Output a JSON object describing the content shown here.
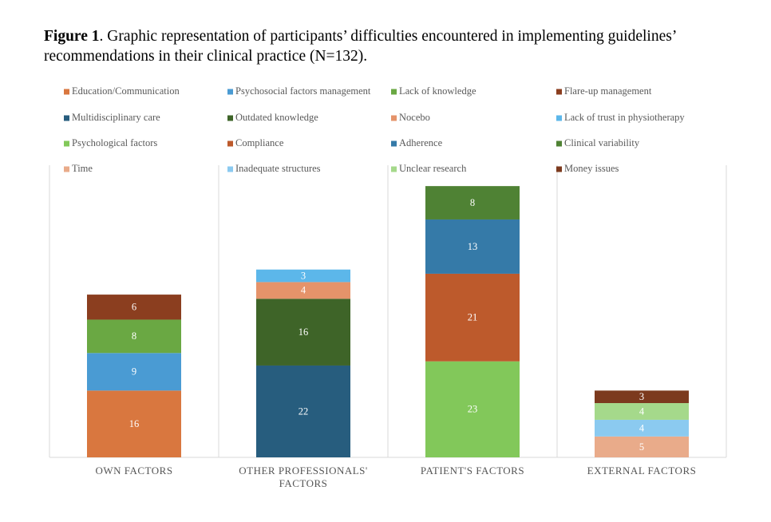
{
  "figure_label": "Figure 1",
  "chart_data": {
    "type": "bar",
    "stacked": true,
    "title": ". Graphic representation of participants’ difficulties encountered in implementing guidelines’ recommendations in their clinical practice (N=132).",
    "categories": [
      "OWN FACTORS",
      "OTHER PROFESSIONALS' FACTORS",
      "PATIENT'S FACTORS",
      "EXTERNAL FACTORS"
    ],
    "ylim": [
      0,
      70
    ],
    "series": [
      {
        "name": "Education/Communication",
        "color": "#d9773f",
        "values": [
          16,
          null,
          null,
          null
        ]
      },
      {
        "name": "Psychosocial factors management",
        "color": "#4a9bd3",
        "values": [
          9,
          null,
          null,
          null
        ]
      },
      {
        "name": "Lack of knowledge",
        "color": "#6aa843",
        "values": [
          8,
          null,
          null,
          null
        ]
      },
      {
        "name": "Flare-up management",
        "color": "#8b3e1f",
        "values": [
          6,
          null,
          null,
          null
        ]
      },
      {
        "name": "Multidisciplinary care",
        "color": "#275d7e",
        "values": [
          null,
          22,
          null,
          null
        ]
      },
      {
        "name": "Outdated knowledge",
        "color": "#3e6428",
        "values": [
          null,
          16,
          null,
          null
        ]
      },
      {
        "name": "Nocebo",
        "color": "#e5936a",
        "values": [
          null,
          4,
          null,
          null
        ]
      },
      {
        "name": "Lack of trust in physiotherapy",
        "color": "#5cb7ea",
        "values": [
          null,
          3,
          null,
          null
        ]
      },
      {
        "name": "Psychological factors",
        "color": "#82c85a",
        "values": [
          null,
          null,
          23,
          null
        ]
      },
      {
        "name": "Compliance",
        "color": "#bd5a2c",
        "values": [
          null,
          null,
          21,
          null
        ]
      },
      {
        "name": "Adherence",
        "color": "#357aa8",
        "values": [
          null,
          null,
          13,
          null
        ]
      },
      {
        "name": "Clinical variability",
        "color": "#4f8234",
        "values": [
          null,
          null,
          8,
          null
        ]
      },
      {
        "name": "Time",
        "color": "#e9ab8a",
        "values": [
          null,
          null,
          null,
          5
        ]
      },
      {
        "name": "Inadequate structures",
        "color": "#8bcaf0",
        "values": [
          null,
          null,
          null,
          4
        ]
      },
      {
        "name": "Unclear research",
        "color": "#a5d98b",
        "values": [
          null,
          null,
          null,
          4
        ]
      },
      {
        "name": "Money issues",
        "color": "#7c3a1e",
        "values": [
          null,
          null,
          null,
          3
        ]
      }
    ]
  }
}
